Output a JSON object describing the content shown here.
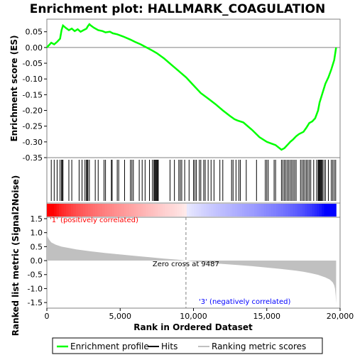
{
  "title": "Enrichment plot: HALLMARK_COAGULATION",
  "chart_data": [
    {
      "panel": "enrichment-profile",
      "type": "line",
      "ylabel": "Enrichment score (ES)",
      "ylim": [
        -0.35,
        0.09
      ],
      "yticks": [
        "0.05",
        "0.00",
        "-0.05",
        "-0.10",
        "-0.15",
        "-0.20",
        "-0.25",
        "-0.30",
        "-0.35"
      ],
      "ytick_values": [
        0.05,
        0.0,
        -0.05,
        -0.1,
        -0.15,
        -0.2,
        -0.25,
        -0.3,
        -0.35
      ],
      "series": [
        {
          "name": "Enrichment profile",
          "color": "#00ff00",
          "x": [
            0,
            300,
            500,
            700,
            900,
            1000,
            1100,
            1300,
            1500,
            1700,
            1900,
            2100,
            2300,
            2500,
            2700,
            2800,
            2900,
            3000,
            3200,
            3500,
            3800,
            4000,
            4300,
            4500,
            4800,
            5200,
            5700,
            6000,
            6400,
            6800,
            7200,
            7500,
            8000,
            8500,
            9000,
            9500,
            10000,
            10500,
            11000,
            11500,
            12000,
            12500,
            12800,
            13000,
            13400,
            14000,
            14500,
            15000,
            15300,
            15600,
            16000,
            16200,
            16400,
            16600,
            16800,
            17000,
            17200,
            17500,
            17700,
            17900,
            18100,
            18300,
            18500,
            18600,
            18800,
            19000,
            19200,
            19400,
            19600,
            19730
          ],
          "y": [
            0.0,
            0.015,
            0.01,
            0.018,
            0.028,
            0.055,
            0.07,
            0.062,
            0.055,
            0.06,
            0.052,
            0.058,
            0.05,
            0.055,
            0.06,
            0.068,
            0.074,
            0.07,
            0.063,
            0.055,
            0.052,
            0.048,
            0.05,
            0.045,
            0.042,
            0.035,
            0.025,
            0.018,
            0.01,
            0.0,
            -0.01,
            -0.018,
            -0.035,
            -0.055,
            -0.075,
            -0.095,
            -0.12,
            -0.145,
            -0.162,
            -0.18,
            -0.2,
            -0.218,
            -0.228,
            -0.232,
            -0.238,
            -0.262,
            -0.285,
            -0.3,
            -0.305,
            -0.31,
            -0.325,
            -0.32,
            -0.31,
            -0.3,
            -0.292,
            -0.282,
            -0.275,
            -0.268,
            -0.255,
            -0.24,
            -0.235,
            -0.225,
            -0.2,
            -0.175,
            -0.145,
            -0.115,
            -0.095,
            -0.07,
            -0.04,
            0.0
          ]
        }
      ]
    },
    {
      "panel": "hits",
      "type": "scatter",
      "series": [
        {
          "name": "Hits",
          "x": [
            300,
            500,
            700,
            900,
            1000,
            1050,
            1100,
            1500,
            1700,
            2200,
            2400,
            2600,
            2700,
            2750,
            2800,
            2900,
            3300,
            3500,
            3900,
            4000,
            4400,
            4450,
            4800,
            4900,
            5300,
            5700,
            5800,
            5900,
            6300,
            6500,
            6700,
            7000,
            7200,
            7300,
            7350,
            7400,
            7450,
            7500,
            7550,
            7600,
            8400,
            8700,
            9000,
            9100,
            9200,
            9400,
            9700,
            10000,
            10100,
            10200,
            10400,
            10500,
            10700,
            10800,
            11000,
            11200,
            11400,
            11800,
            12000,
            12600,
            12700,
            12900,
            13100,
            13200,
            13600,
            14300,
            14900,
            15000,
            15100,
            15500,
            15600,
            16000,
            16100,
            16200,
            16300,
            16400,
            16500,
            16600,
            16700,
            16800,
            16900,
            17000,
            17300,
            17400,
            17500,
            17600,
            17700,
            17800,
            17900,
            18000,
            18200,
            18400,
            18500,
            18550,
            18600,
            18650,
            18700,
            18750,
            18800,
            18900,
            19000,
            19200,
            19400,
            19500,
            19600,
            19700
          ]
        }
      ]
    },
    {
      "panel": "ranked-metric",
      "type": "area",
      "xlabel": "Rank in Ordered Dataset",
      "ylabel": "Ranked list metric (Signal2Noise)",
      "xlim": [
        0,
        20000
      ],
      "ylim": [
        -1.7,
        1.55
      ],
      "xticks": [
        "0",
        "5,000",
        "10,000",
        "15,000",
        "20,000"
      ],
      "xtick_values": [
        0,
        5000,
        10000,
        15000,
        20000
      ],
      "yticks": [
        "1.5",
        "1.0",
        "0.5",
        "0.0",
        "-0.5",
        "-1.0",
        "-1.5"
      ],
      "ytick_values": [
        1.5,
        1.0,
        0.5,
        0.0,
        -0.5,
        -1.0,
        -1.5
      ],
      "series": [
        {
          "name": "Ranking metric scores",
          "color": "#c0c0c0",
          "x": [
            0,
            50,
            150,
            300,
            600,
            1000,
            1500,
            2000,
            3000,
            4000,
            5000,
            6000,
            7000,
            8000,
            9000,
            9487,
            10000,
            11000,
            12000,
            13000,
            14000,
            15000,
            16000,
            17000,
            17500,
            18000,
            18500,
            19000,
            19300,
            19500,
            19600,
            19650,
            19700,
            19730
          ],
          "y": [
            0.95,
            0.85,
            0.75,
            0.65,
            0.57,
            0.5,
            0.45,
            0.4,
            0.33,
            0.27,
            0.22,
            0.17,
            0.12,
            0.07,
            0.03,
            0.0,
            -0.03,
            -0.08,
            -0.12,
            -0.16,
            -0.2,
            -0.25,
            -0.3,
            -0.36,
            -0.4,
            -0.45,
            -0.51,
            -0.6,
            -0.68,
            -0.78,
            -0.88,
            -1.0,
            -1.25,
            -1.55
          ]
        }
      ],
      "annotations": {
        "zero_cross": "Zero cross at 9487",
        "zero_cross_rank": 9487,
        "positive": "'1' (positively correlated)",
        "negative": "'3' (negatively correlated)"
      }
    }
  ],
  "legend": {
    "items": [
      {
        "label": "Enrichment profile",
        "color": "#00ff00"
      },
      {
        "label": "Hits",
        "color": "#000000"
      },
      {
        "label": "Ranking metric scores",
        "color": "#c0c0c0"
      }
    ]
  },
  "colors": {
    "positive_label": "#ff0000",
    "negative_label": "#0000ff",
    "zero_line": "#808080"
  }
}
